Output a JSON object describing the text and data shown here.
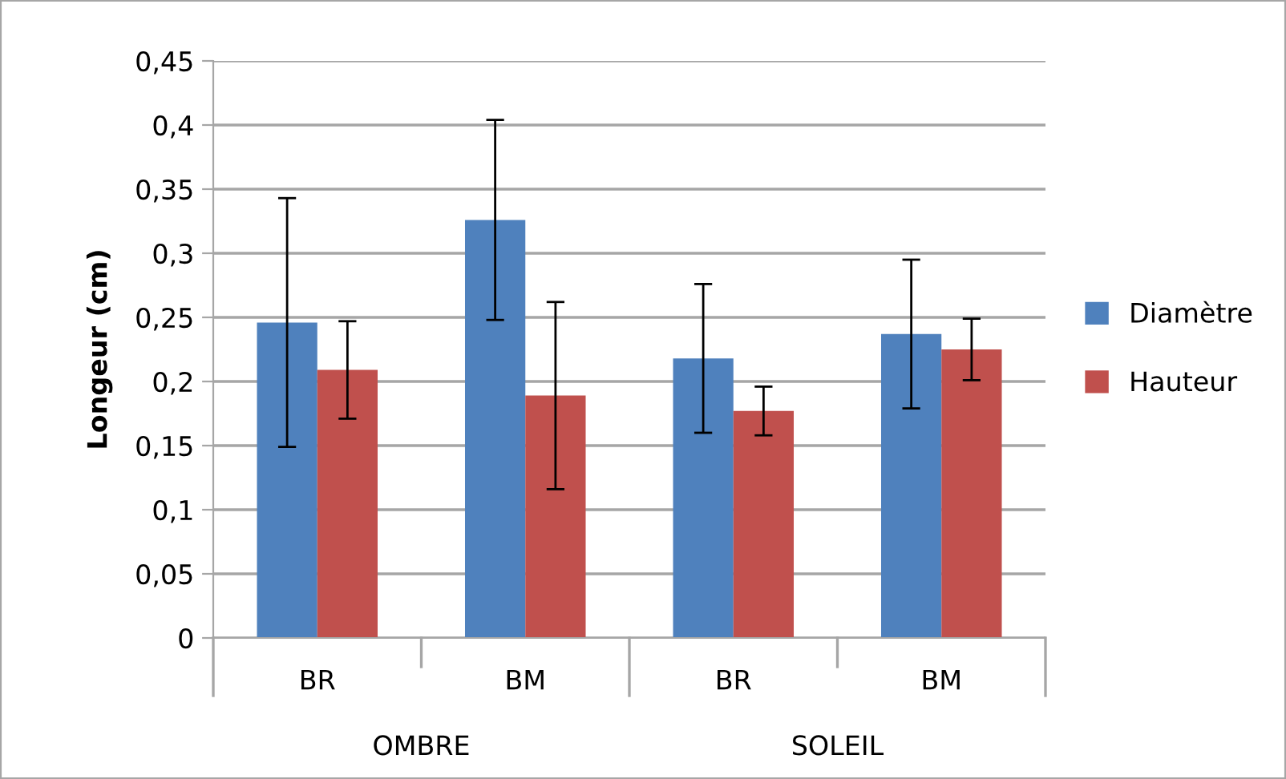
{
  "chart_data": {
    "type": "bar",
    "ylabel": "Longeur (cm)",
    "categories": [
      "BR",
      "BM",
      "BR",
      "BM"
    ],
    "annotations": [
      "OMBRE",
      "SOLEIL"
    ],
    "series": [
      {
        "name": "Diamètre",
        "color": "#4f81bd",
        "values": [
          0.246,
          0.326,
          0.218,
          0.237
        ],
        "errors": [
          0.097,
          0.078,
          0.058,
          0.058
        ]
      },
      {
        "name": "Hauteur",
        "color": "#c0504d",
        "values": [
          0.209,
          0.189,
          0.177,
          0.225
        ],
        "errors": [
          0.038,
          0.073,
          0.019,
          0.024
        ]
      }
    ],
    "ylim": [
      0,
      0.45
    ],
    "yticks": [
      {
        "value": 0,
        "label": "0"
      },
      {
        "value": 0.05,
        "label": "0,05"
      },
      {
        "value": 0.1,
        "label": "0,1"
      },
      {
        "value": 0.15,
        "label": "0,15"
      },
      {
        "value": 0.2,
        "label": "0,2"
      },
      {
        "value": 0.25,
        "label": "0,25"
      },
      {
        "value": 0.3,
        "label": "0,3"
      },
      {
        "value": 0.35,
        "label": "0,35"
      },
      {
        "value": 0.4,
        "label": "0,4"
      },
      {
        "value": 0.45,
        "label": "0,45"
      }
    ],
    "grid": "y",
    "legend": "right"
  }
}
